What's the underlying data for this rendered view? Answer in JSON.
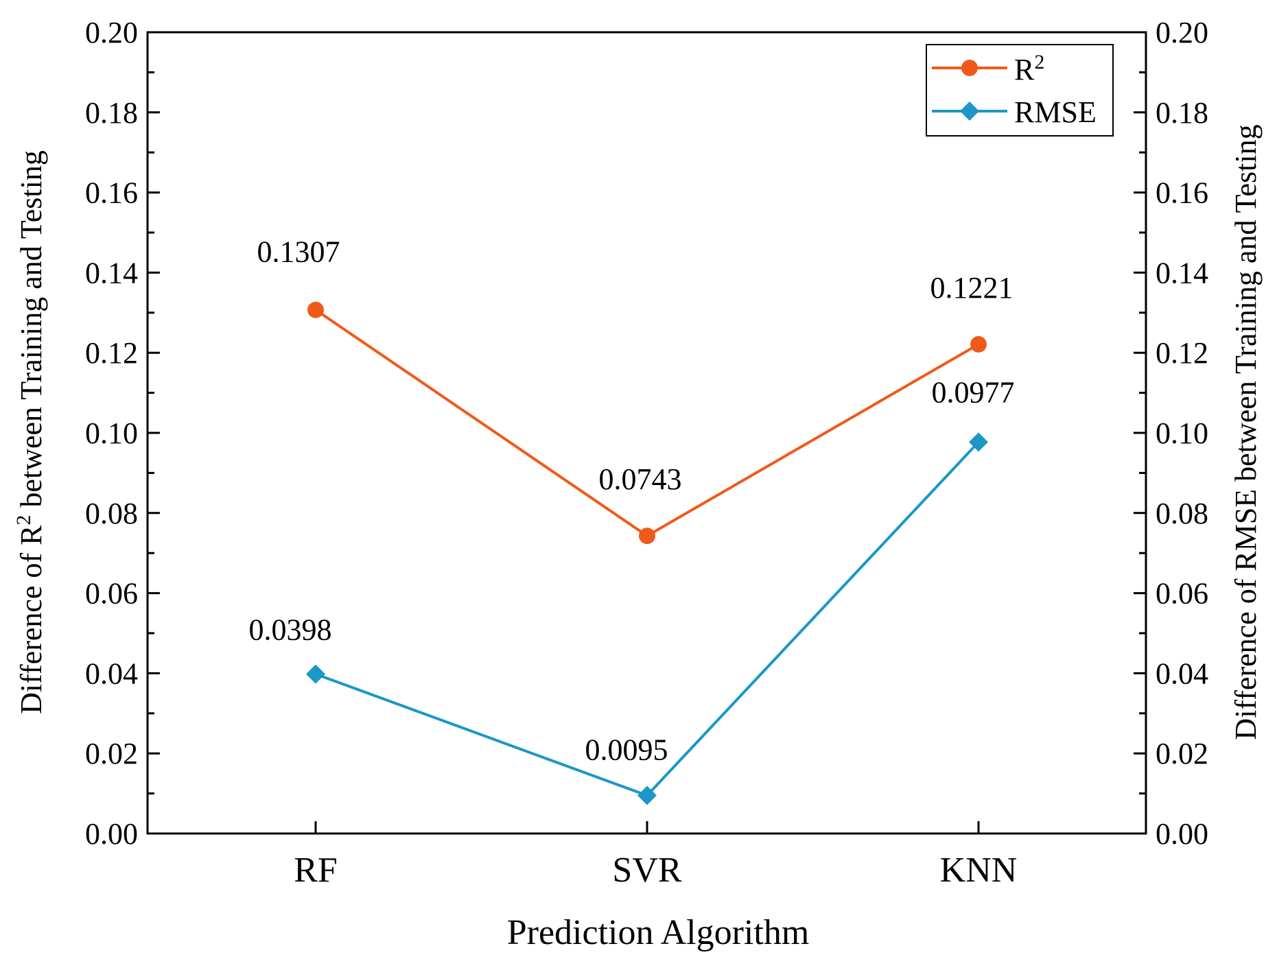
{
  "chart_data": {
    "type": "line",
    "categories": [
      "RF",
      "SVR",
      "KNN"
    ],
    "series": [
      {
        "name": "R",
        "name_sup": "2",
        "color": "#f05a19",
        "marker": "circle",
        "values": [
          0.1307,
          0.0743,
          0.1221
        ],
        "labels": [
          "0.1307",
          "0.0743",
          "0.1221"
        ]
      },
      {
        "name": "RMSE",
        "name_sup": "",
        "color": "#1b97c8",
        "marker": "diamond",
        "values": [
          0.0398,
          0.0095,
          0.0977
        ],
        "labels": [
          "0.0398",
          "0.0095",
          "0.0977"
        ]
      }
    ],
    "ylim": [
      0,
      0.2
    ],
    "yticks": [
      "0.00",
      "0.02",
      "0.04",
      "0.06",
      "0.08",
      "0.10",
      "0.12",
      "0.14",
      "0.16",
      "0.18",
      "0.20"
    ],
    "xlabel": "Prediction Algorithm",
    "ylabel_left": {
      "pre": "Difference of R",
      "sup": "2",
      "post": " between Training and Testing"
    },
    "ylabel_right": "Difference of RMSE between Training and Testing",
    "legend_position": "top-right",
    "grid": false
  }
}
